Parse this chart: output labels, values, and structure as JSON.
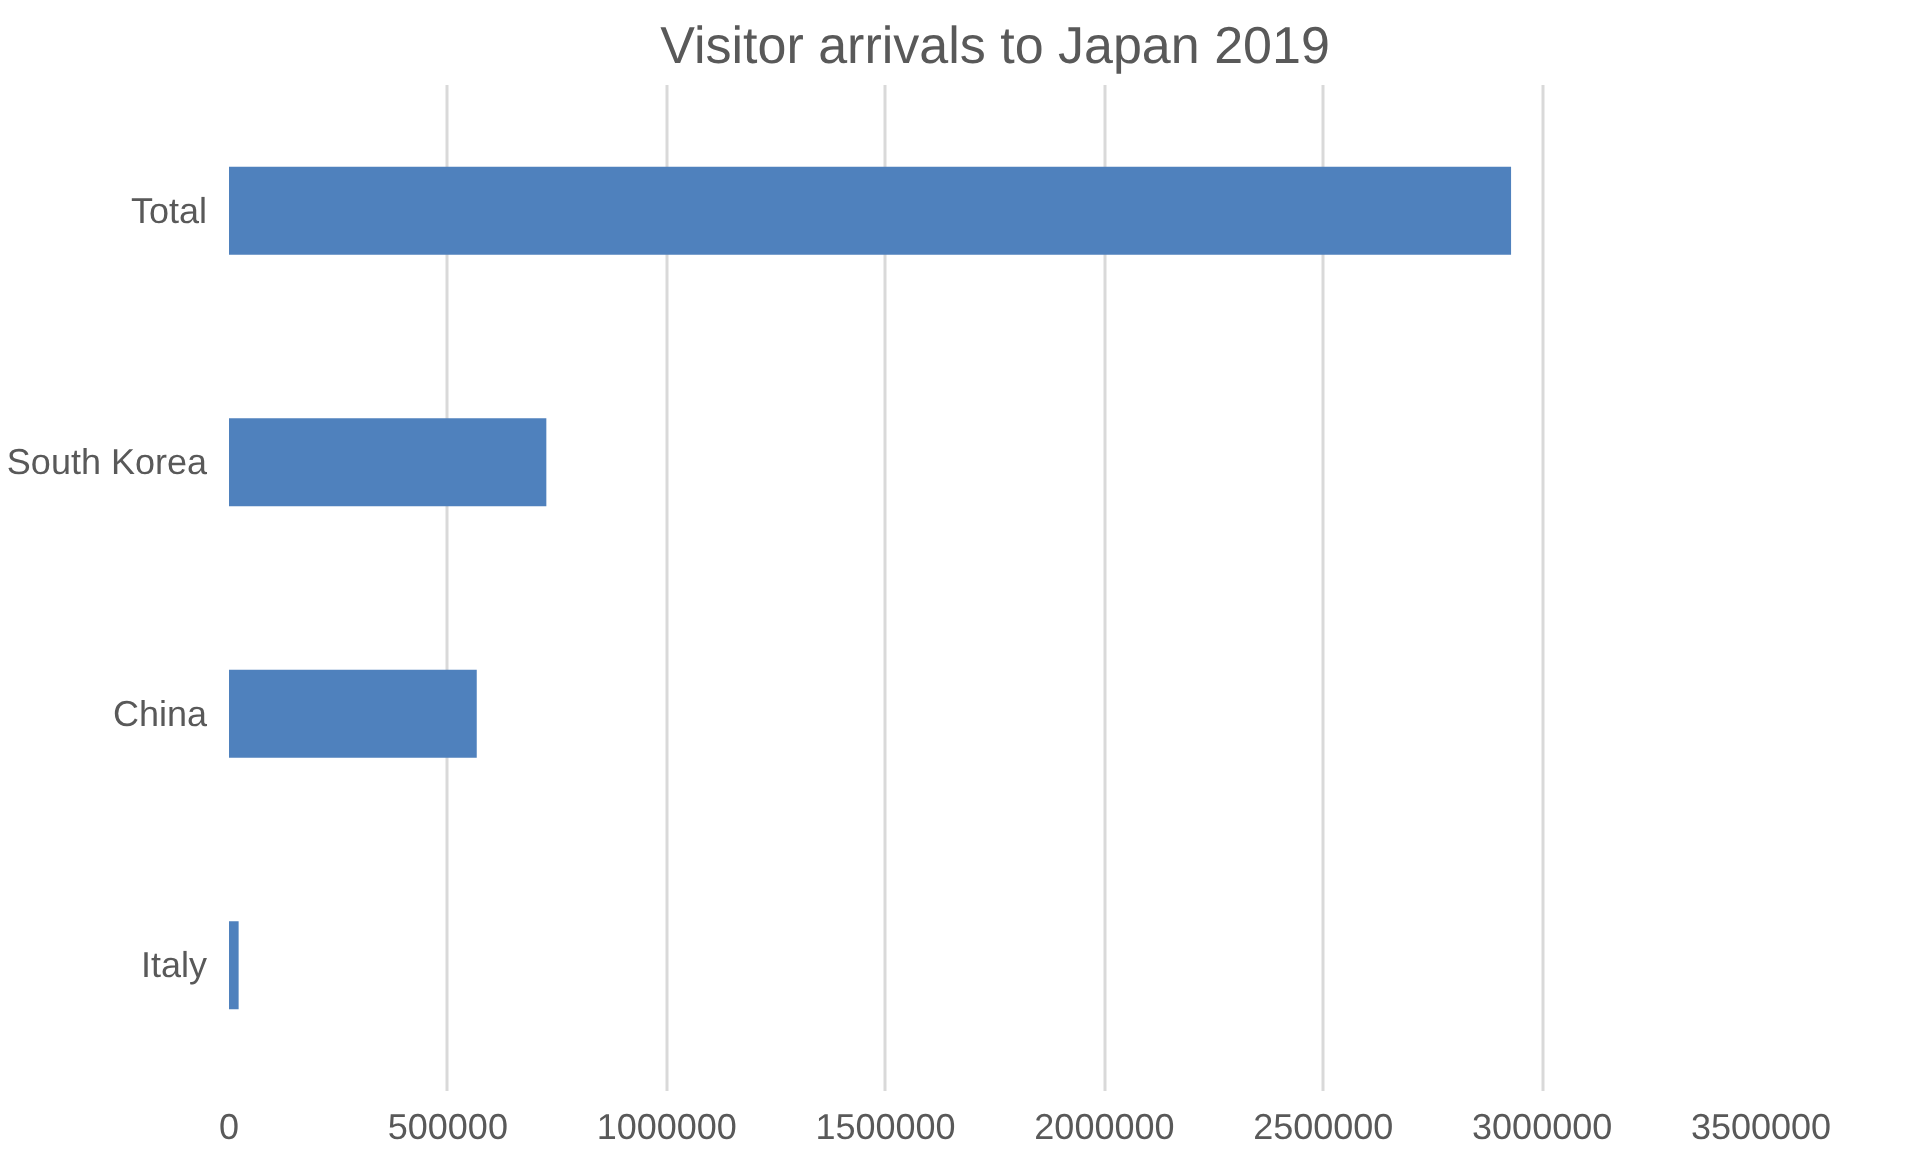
{
  "chart_data": {
    "type": "bar",
    "orientation": "horizontal",
    "title": "Visitor arrivals to Japan 2019",
    "categories": [
      "Total",
      "South Korea",
      "China",
      "Italy"
    ],
    "values": [
      2929000,
      725000,
      566000,
      22000
    ],
    "color": "#4f81bd",
    "xlim": [
      0,
      3500000
    ],
    "xticks": [
      0,
      500000,
      1000000,
      1500000,
      2000000,
      2500000,
      3000000,
      3500000
    ],
    "grid": "x"
  }
}
